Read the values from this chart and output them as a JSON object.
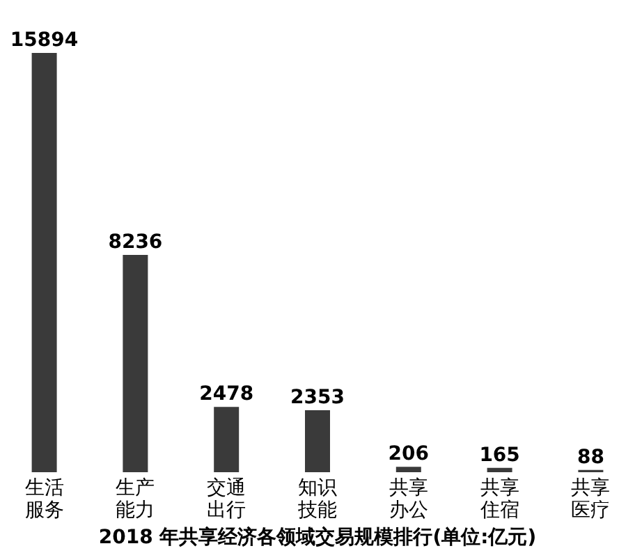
{
  "chart_data": {
    "type": "bar",
    "title": "2018 年共享经济各领域交易规模排行(单位:亿元)",
    "categories": [
      "生活服务",
      "生产能力",
      "交通出行",
      "知识技能",
      "共享办公",
      "共享住宿",
      "共享医疗"
    ],
    "values": [
      15894,
      8236,
      2478,
      2353,
      206,
      165,
      88
    ],
    "color": "#3a3a3a",
    "data_labels": true
  }
}
